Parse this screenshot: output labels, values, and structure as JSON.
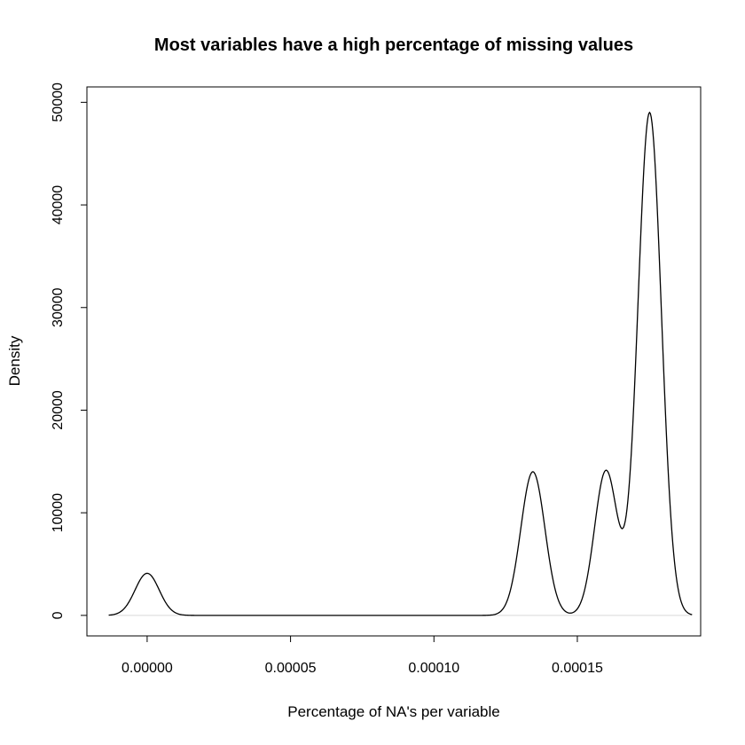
{
  "chart_data": {
    "type": "line",
    "title": "Most variables have a high percentage of missing values",
    "xlabel": "Percentage of NA's per variable",
    "ylabel": "Density",
    "xlim": [
      -2.1e-05,
      0.000193
    ],
    "ylim": [
      -2000,
      51500
    ],
    "x_ticks": [
      0,
      5e-05,
      0.0001,
      0.00015
    ],
    "x_tick_labels": [
      "0.00000",
      "0.00005",
      "0.00010",
      "0.00015"
    ],
    "y_ticks": [
      0,
      10000,
      20000,
      30000,
      40000,
      50000
    ],
    "y_tick_labels": [
      "0",
      "10000",
      "20000",
      "30000",
      "40000",
      "50000"
    ],
    "grid": false,
    "legend": "none",
    "line_color": "#000000",
    "baseline_color": "#d9d9d9",
    "x_start": -1.34e-05,
    "x_end": 0.00019,
    "series": [
      {
        "components": [
          {
            "center": 0.0,
            "height": 4100,
            "sd": 4.2e-06
          },
          {
            "center": 0.0001345,
            "height": 14000,
            "sd": 4.2e-06
          },
          {
            "center": 0.00016,
            "height": 14100,
            "sd": 4e-06
          },
          {
            "center": 0.0001752,
            "height": 49000,
            "sd": 4.1e-06
          }
        ]
      }
    ]
  }
}
